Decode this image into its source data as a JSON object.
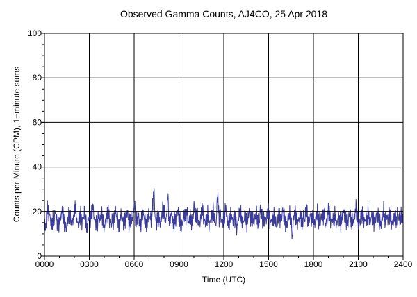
{
  "chart_data": {
    "type": "line",
    "title": "Observed Gamma Counts, AJ4CO, 25 Apr 2018",
    "xlabel": "Time (UTC)",
    "ylabel": "Counts per Minute (CPM), 1−minute sums",
    "xlim": [
      0,
      1440
    ],
    "ylim": [
      0,
      100
    ],
    "x_unit": "minutes of day (UTC)",
    "x_ticks": [
      {
        "value": 0,
        "label": "0000"
      },
      {
        "value": 180,
        "label": "0300"
      },
      {
        "value": 360,
        "label": "0600"
      },
      {
        "value": 540,
        "label": "0900"
      },
      {
        "value": 720,
        "label": "1200"
      },
      {
        "value": 900,
        "label": "1500"
      },
      {
        "value": 1080,
        "label": "1800"
      },
      {
        "value": 1260,
        "label": "2100"
      },
      {
        "value": 1440,
        "label": "2400"
      }
    ],
    "y_ticks": [
      0,
      20,
      40,
      60,
      80,
      100
    ],
    "grid": true,
    "colors": {
      "series": "#3c3c9c",
      "grid": "#000000",
      "reference_line": "#000000"
    },
    "reference_line_y": 20,
    "series": [
      {
        "values": [
          16,
          12,
          22,
          19,
          18,
          14,
          16,
          17,
          20,
          15,
          13,
          16,
          18,
          21,
          16,
          14,
          12,
          17,
          19,
          16,
          15,
          17,
          23,
          18,
          14,
          16,
          19,
          15,
          17,
          20,
          14,
          13,
          18,
          16,
          19,
          22,
          17,
          15,
          14,
          18,
          16,
          19,
          17,
          13,
          15,
          18,
          20,
          16,
          14,
          17,
          15,
          21,
          18,
          16,
          12,
          19,
          17,
          15,
          16,
          18,
          20,
          14,
          17,
          16,
          19,
          24,
          15,
          17,
          18,
          13,
          16,
          20,
          17,
          15,
          14,
          19,
          18,
          16,
          22,
          30,
          17,
          15,
          18,
          16,
          14,
          20,
          21,
          17,
          16,
          28,
          15,
          18,
          19,
          14,
          16,
          17,
          21,
          18,
          15,
          13,
          16,
          19,
          17,
          20,
          14,
          18,
          16,
          15,
          23,
          17,
          19,
          16,
          14,
          18,
          21,
          17,
          15,
          16,
          19,
          13,
          17,
          18,
          20,
          16,
          14,
          29,
          17,
          19,
          15,
          16,
          18,
          22,
          16,
          14,
          17,
          19,
          15,
          18,
          16,
          12,
          17,
          20,
          18,
          15,
          16,
          19,
          14,
          17,
          21,
          16,
          18,
          15,
          17,
          19,
          16,
          14,
          22,
          18,
          15,
          17,
          16,
          19,
          20,
          14,
          17,
          16,
          18,
          15,
          13,
          19,
          17,
          16,
          21,
          18,
          15,
          14,
          17,
          19,
          16,
          8,
          18,
          20,
          16,
          15,
          17,
          19,
          14,
          18,
          16,
          22,
          17,
          15,
          19,
          16,
          18,
          14,
          17,
          20,
          16,
          15,
          18,
          17,
          19,
          14,
          16,
          21,
          18,
          15,
          17,
          16,
          19,
          13,
          18,
          16,
          15,
          17,
          20,
          18,
          16,
          14,
          19,
          17,
          15,
          16,
          18,
          22,
          17,
          14,
          16,
          19,
          18,
          15,
          17,
          16,
          20,
          14,
          18,
          17,
          15,
          16,
          19,
          18,
          16,
          14,
          17,
          21,
          15,
          18,
          16,
          19,
          17,
          14,
          16,
          18,
          15,
          20,
          17,
          16,
          19,
          15
        ]
      }
    ]
  }
}
